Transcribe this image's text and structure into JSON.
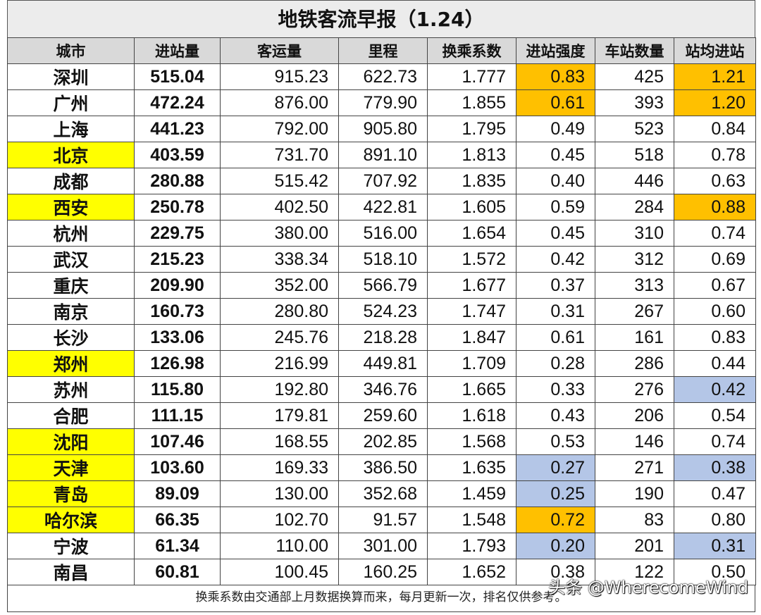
{
  "title": "地铁客流早报（1.24）",
  "headers": [
    "城市",
    "进站量",
    "客运量",
    "里程",
    "换乘系数",
    "进站强度",
    "车站数量",
    "站均进站"
  ],
  "rows": [
    {
      "city": "深圳",
      "entry": "515.04",
      "ridership": "915.23",
      "mileage": "622.73",
      "transfer": "1.777",
      "intensity": "0.83",
      "stations": "425",
      "per_station": "1.21"
    },
    {
      "city": "广州",
      "entry": "472.24",
      "ridership": "876.00",
      "mileage": "779.90",
      "transfer": "1.855",
      "intensity": "0.61",
      "stations": "393",
      "per_station": "1.20"
    },
    {
      "city": "上海",
      "entry": "441.23",
      "ridership": "792.00",
      "mileage": "905.80",
      "transfer": "1.795",
      "intensity": "0.49",
      "stations": "523",
      "per_station": "0.84"
    },
    {
      "city": "北京",
      "entry": "403.59",
      "ridership": "731.70",
      "mileage": "891.10",
      "transfer": "1.813",
      "intensity": "0.45",
      "stations": "518",
      "per_station": "0.78"
    },
    {
      "city": "成都",
      "entry": "280.88",
      "ridership": "515.42",
      "mileage": "707.92",
      "transfer": "1.835",
      "intensity": "0.40",
      "stations": "446",
      "per_station": "0.63"
    },
    {
      "city": "西安",
      "entry": "250.78",
      "ridership": "402.50",
      "mileage": "422.81",
      "transfer": "1.605",
      "intensity": "0.59",
      "stations": "284",
      "per_station": "0.88"
    },
    {
      "city": "杭州",
      "entry": "229.75",
      "ridership": "380.00",
      "mileage": "516.00",
      "transfer": "1.654",
      "intensity": "0.45",
      "stations": "310",
      "per_station": "0.74"
    },
    {
      "city": "武汉",
      "entry": "215.23",
      "ridership": "338.34",
      "mileage": "518.10",
      "transfer": "1.572",
      "intensity": "0.42",
      "stations": "312",
      "per_station": "0.69"
    },
    {
      "city": "重庆",
      "entry": "209.90",
      "ridership": "352.00",
      "mileage": "566.79",
      "transfer": "1.677",
      "intensity": "0.37",
      "stations": "313",
      "per_station": "0.67"
    },
    {
      "city": "南京",
      "entry": "160.73",
      "ridership": "280.80",
      "mileage": "524.23",
      "transfer": "1.747",
      "intensity": "0.31",
      "stations": "267",
      "per_station": "0.60"
    },
    {
      "city": "长沙",
      "entry": "133.06",
      "ridership": "245.76",
      "mileage": "218.28",
      "transfer": "1.847",
      "intensity": "0.61",
      "stations": "161",
      "per_station": "0.83"
    },
    {
      "city": "郑州",
      "entry": "126.98",
      "ridership": "216.99",
      "mileage": "449.81",
      "transfer": "1.709",
      "intensity": "0.28",
      "stations": "286",
      "per_station": "0.44"
    },
    {
      "city": "苏州",
      "entry": "115.80",
      "ridership": "192.80",
      "mileage": "346.76",
      "transfer": "1.665",
      "intensity": "0.33",
      "stations": "276",
      "per_station": "0.42"
    },
    {
      "city": "合肥",
      "entry": "111.15",
      "ridership": "179.81",
      "mileage": "259.60",
      "transfer": "1.618",
      "intensity": "0.43",
      "stations": "206",
      "per_station": "0.54"
    },
    {
      "city": "沈阳",
      "entry": "107.46",
      "ridership": "168.55",
      "mileage": "202.85",
      "transfer": "1.568",
      "intensity": "0.53",
      "stations": "146",
      "per_station": "0.74"
    },
    {
      "city": "天津",
      "entry": "103.60",
      "ridership": "169.33",
      "mileage": "386.50",
      "transfer": "1.635",
      "intensity": "0.27",
      "stations": "271",
      "per_station": "0.38"
    },
    {
      "city": "青岛",
      "entry": "89.09",
      "ridership": "130.00",
      "mileage": "352.68",
      "transfer": "1.459",
      "intensity": "0.25",
      "stations": "190",
      "per_station": "0.47"
    },
    {
      "city": "哈尔滨",
      "entry": "66.35",
      "ridership": "102.70",
      "mileage": "91.57",
      "transfer": "1.548",
      "intensity": "0.72",
      "stations": "83",
      "per_station": "0.80"
    },
    {
      "city": "宁波",
      "entry": "61.34",
      "ridership": "110.00",
      "mileage": "301.00",
      "transfer": "1.793",
      "intensity": "0.20",
      "stations": "201",
      "per_station": "0.31"
    },
    {
      "city": "南昌",
      "entry": "60.81",
      "ridership": "100.45",
      "mileage": "160.25",
      "transfer": "1.652",
      "intensity": "0.38",
      "stations": "122",
      "per_station": "0.50"
    }
  ],
  "highlights": {
    "city_yellow": [
      "北京",
      "西安",
      "郑州",
      "沈阳",
      "天津",
      "青岛",
      "哈尔滨"
    ],
    "intensity_orange": [
      "深圳",
      "广州",
      "哈尔滨"
    ],
    "intensity_blue": [
      "天津",
      "青岛",
      "宁波"
    ],
    "per_station_orange": [
      "深圳",
      "广州",
      "西安"
    ],
    "per_station_blue": [
      "苏州",
      "天津",
      "宁波"
    ]
  },
  "colors": {
    "yellow": "#ffff00",
    "orange": "#ffc000",
    "blue": "#b4c6e7",
    "header_bg": "#d9d9d9"
  },
  "footnote": "换乘系数由交通部上月数据换算而来，每月更新一次，排名仅供参考。",
  "watermark": "头条 @WherecomeWind"
}
